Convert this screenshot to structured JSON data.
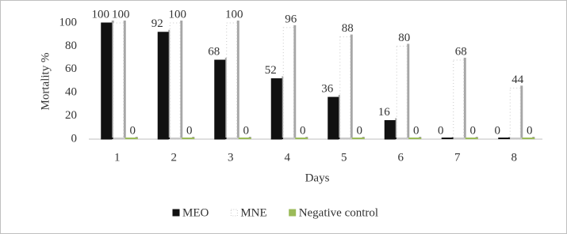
{
  "chart_data": {
    "type": "bar",
    "x_label": "Days",
    "y_label": "Mortality %",
    "categories": [
      "1",
      "2",
      "3",
      "4",
      "5",
      "6",
      "7",
      "8"
    ],
    "series": [
      {
        "name": "MEO",
        "color": "#111111",
        "values": [
          100,
          92,
          68,
          52,
          36,
          16,
          0,
          0
        ]
      },
      {
        "name": "MNE",
        "color": "#ffffff",
        "values": [
          100,
          100,
          100,
          96,
          88,
          80,
          68,
          44
        ]
      },
      {
        "name": "Negative control",
        "color": "#9bbb59",
        "values": [
          0,
          0,
          0,
          0,
          0,
          0,
          0,
          0
        ]
      }
    ],
    "ylim": [
      0,
      100
    ],
    "yticks": [
      0,
      20,
      40,
      60,
      80,
      100
    ],
    "grid": false,
    "legend": "bottom"
  }
}
